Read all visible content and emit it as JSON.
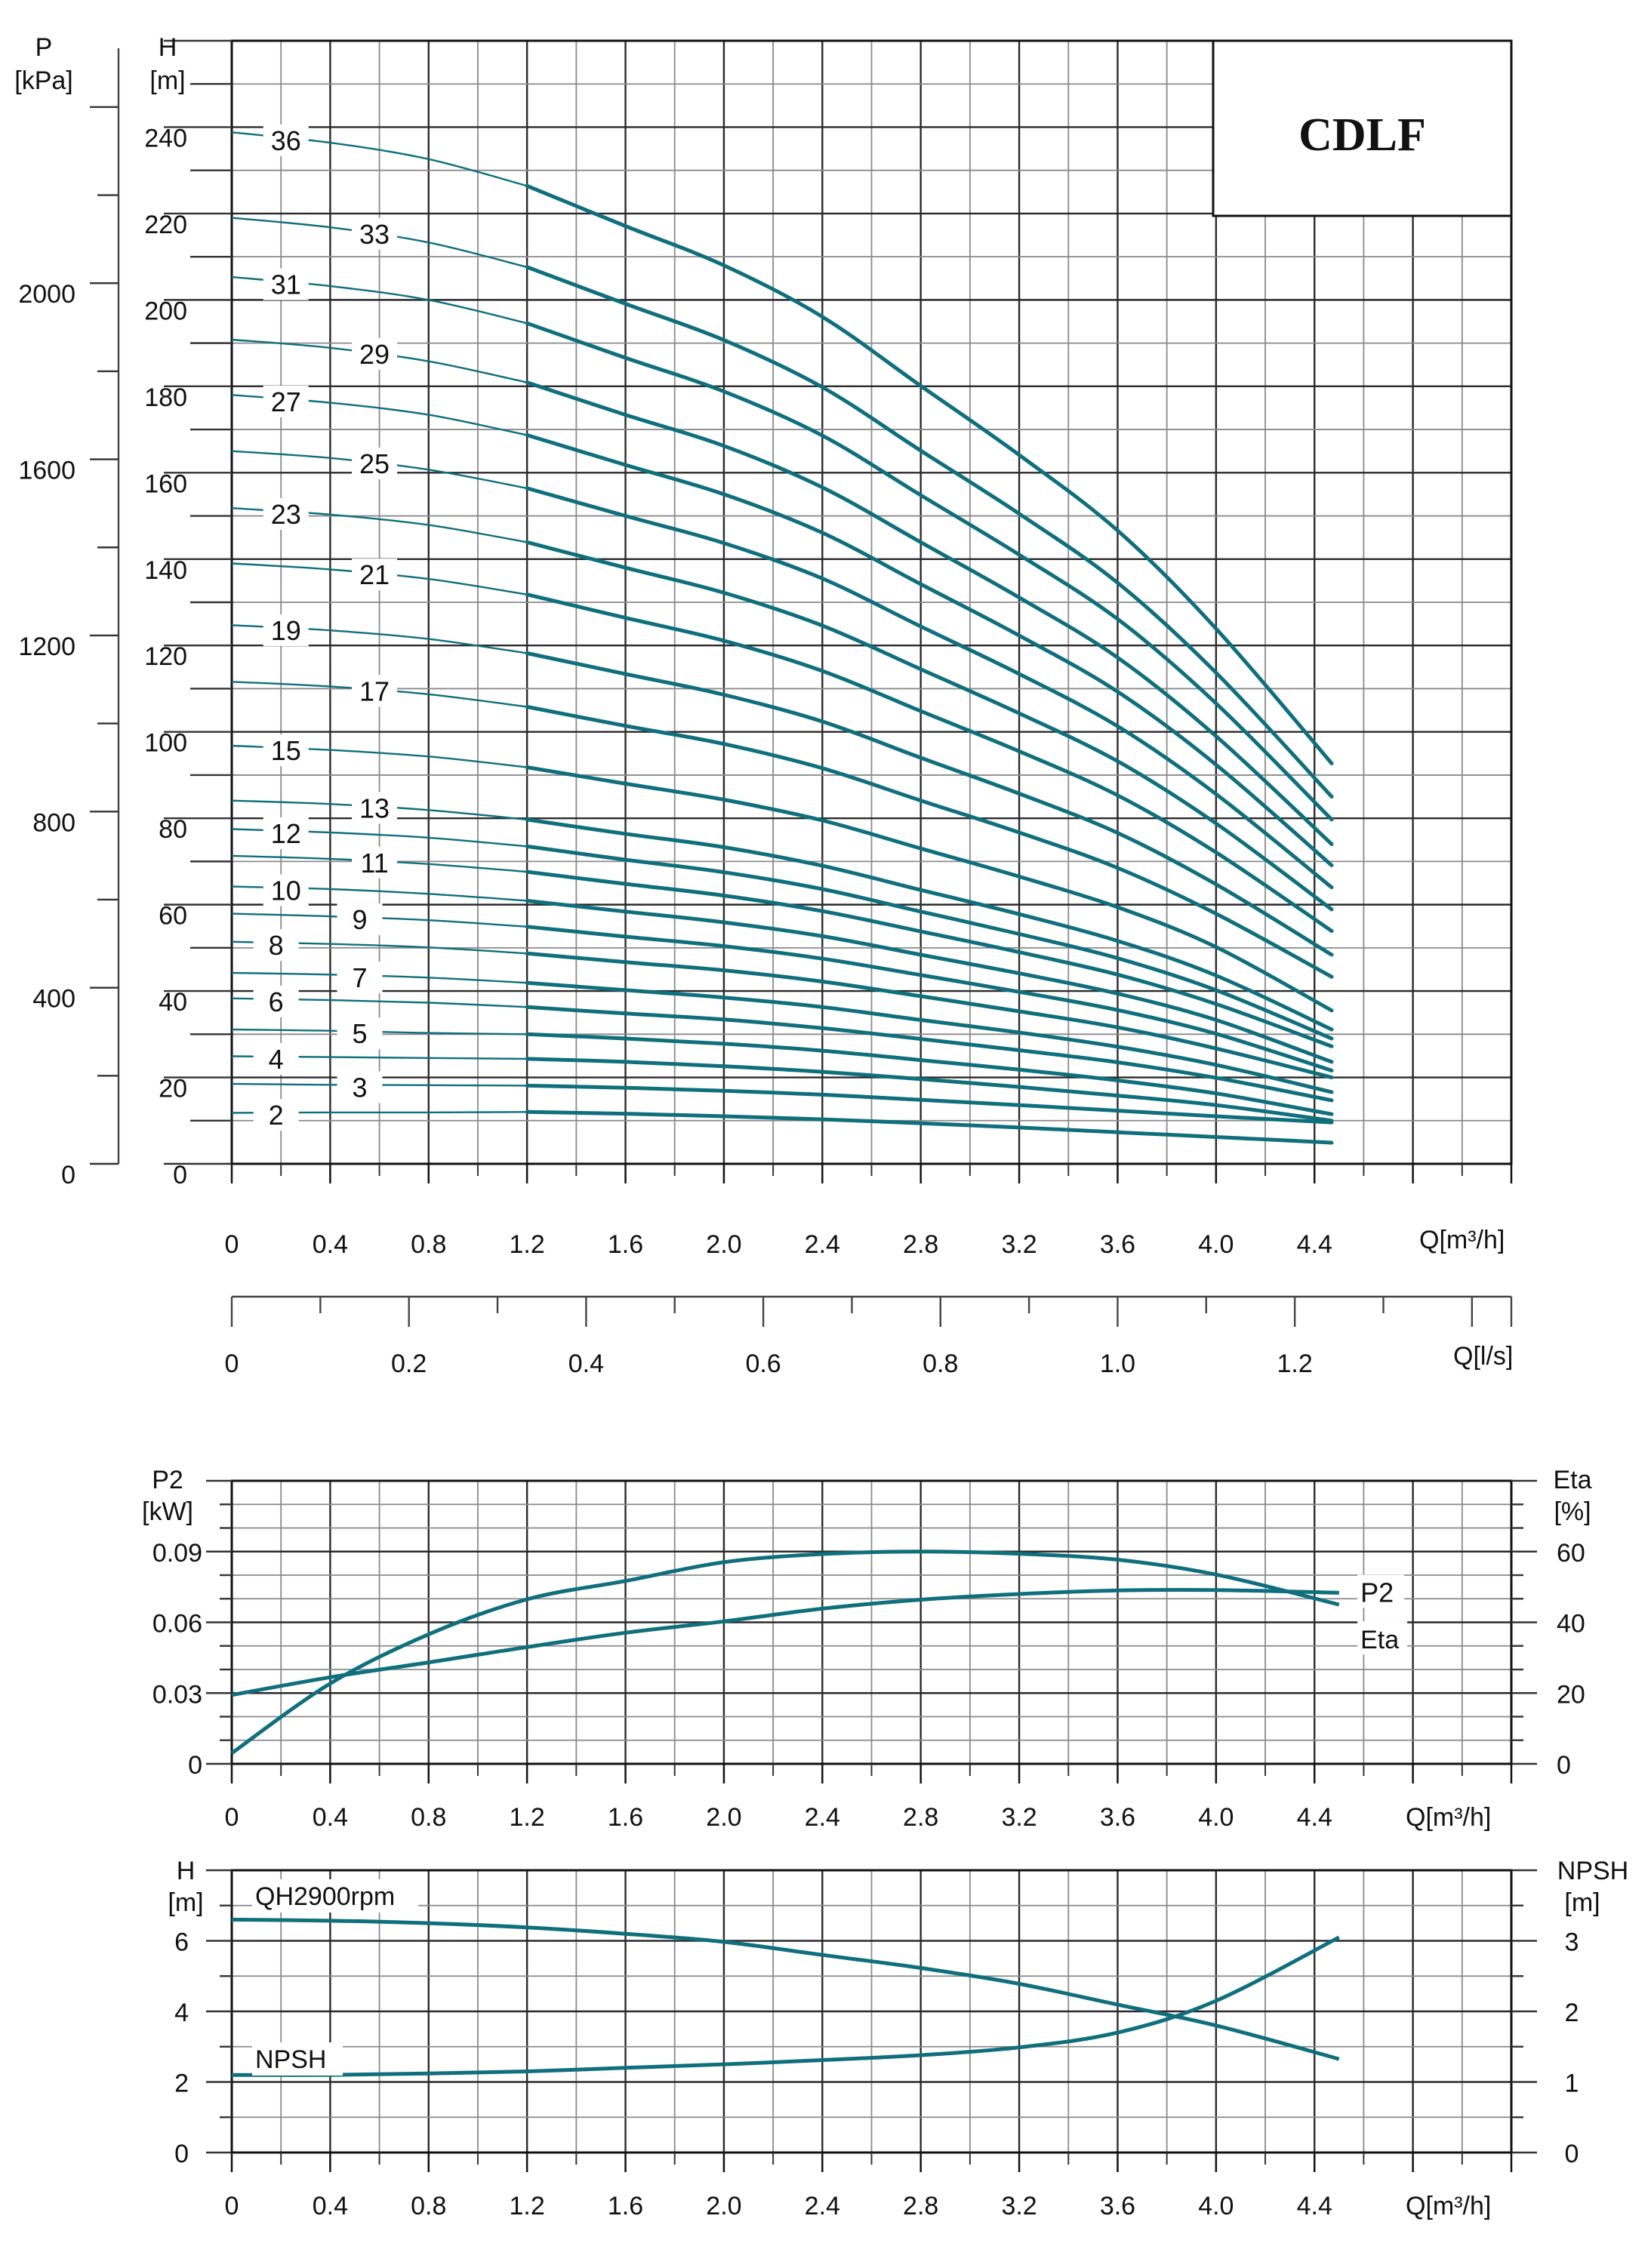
{
  "colors": {
    "curve": "#0f6f7d",
    "grid_major": "#2a2a2a",
    "grid_minor": "#8a8a8a",
    "text": "#111111"
  },
  "chart_data": [
    {
      "id": "qh-multistage",
      "type": "line",
      "title": "CDLF",
      "xlabel": "Q[m³/h]",
      "xlabel_secondary": "Q[l/s]",
      "ylabel": "H",
      "ylabel_unit": "[m]",
      "ylabel_secondary": "P",
      "ylabel_secondary_unit": "[kPa]",
      "xlim": [
        0,
        5.2
      ],
      "ylim": [
        0,
        260
      ],
      "grid": true,
      "x_ticks": [
        "0",
        "0.4",
        "0.8",
        "1.2",
        "1.6",
        "2.0",
        "2.4",
        "2.8",
        "3.2",
        "3.6",
        "4.0",
        "4.4"
      ],
      "x_tick_values": [
        0,
        0.4,
        0.8,
        1.2,
        1.6,
        2.0,
        2.4,
        2.8,
        3.2,
        3.6,
        4.0,
        4.4
      ],
      "y_ticks": [
        "0",
        "20",
        "40",
        "60",
        "80",
        "100",
        "120",
        "140",
        "160",
        "180",
        "200",
        "220",
        "240"
      ],
      "y_tick_values": [
        0,
        20,
        40,
        60,
        80,
        100,
        120,
        140,
        160,
        180,
        200,
        220,
        240
      ],
      "p_ticks": [
        "0",
        "400",
        "800",
        "1200",
        "1600",
        "2000"
      ],
      "p_tick_values": [
        0,
        400,
        800,
        1200,
        1600,
        2000
      ],
      "ls_ticks": [
        "0",
        "0.2",
        "0.4",
        "0.6",
        "0.8",
        "1.0",
        "1.2"
      ],
      "ls_tick_values": [
        0,
        0.2,
        0.4,
        0.6,
        0.8,
        1.0,
        1.2
      ],
      "x": [
        0,
        0.4,
        0.8,
        1.2,
        1.6,
        2.0,
        2.4,
        2.8,
        3.2,
        3.6,
        4.0,
        4.47
      ],
      "series": [
        {
          "name": "36",
          "values": [
            238.8,
            236.4,
            232.6,
            226.4,
            217.1,
            208.0,
            196.1,
            180.1,
            164.1,
            146.6,
            123.9,
            92.7
          ]
        },
        {
          "name": "33",
          "values": [
            219.0,
            216.8,
            213.3,
            207.6,
            199.1,
            190.7,
            179.8,
            165.1,
            150.5,
            134.5,
            113.7,
            85.0
          ]
        },
        {
          "name": "31",
          "values": [
            205.3,
            203.2,
            200.0,
            194.6,
            186.6,
            178.8,
            168.6,
            154.8,
            141.0,
            126.1,
            106.6,
            79.7
          ]
        },
        {
          "name": "29",
          "values": [
            190.8,
            188.9,
            185.8,
            180.9,
            173.4,
            166.2,
            156.6,
            143.9,
            131.1,
            117.2,
            99.0,
            74.0
          ]
        },
        {
          "name": "27",
          "values": [
            178.0,
            176.2,
            173.4,
            168.7,
            161.8,
            155.0,
            146.1,
            134.2,
            122.3,
            109.3,
            92.4,
            69.1
          ]
        },
        {
          "name": "25",
          "values": [
            165.0,
            163.4,
            160.7,
            156.4,
            150.0,
            143.7,
            135.5,
            124.4,
            113.4,
            101.3,
            85.6,
            64.0
          ]
        },
        {
          "name": "23",
          "values": [
            151.8,
            150.3,
            147.9,
            143.9,
            138.0,
            132.2,
            124.6,
            114.5,
            104.3,
            93.2,
            78.8,
            58.9
          ]
        },
        {
          "name": "21",
          "values": [
            139.0,
            137.6,
            135.4,
            131.8,
            126.4,
            121.1,
            114.1,
            104.8,
            95.5,
            85.3,
            72.1,
            53.9
          ]
        },
        {
          "name": "19",
          "values": [
            124.7,
            123.5,
            121.5,
            118.2,
            113.4,
            108.6,
            102.4,
            94.0,
            85.7,
            76.6,
            64.7,
            48.4
          ]
        },
        {
          "name": "17",
          "values": [
            111.6,
            110.5,
            108.7,
            105.8,
            101.4,
            97.2,
            91.6,
            84.1,
            76.7,
            68.5,
            57.9,
            43.3
          ]
        },
        {
          "name": "15",
          "values": [
            96.8,
            95.8,
            94.3,
            91.8,
            88.0,
            84.3,
            79.5,
            73.0,
            66.5,
            59.4,
            50.2,
            35.5
          ]
        },
        {
          "name": "13",
          "values": [
            84.1,
            83.3,
            81.9,
            79.7,
            76.4,
            73.3,
            69.0,
            63.4,
            57.8,
            51.6,
            43.6,
            31.1
          ]
        },
        {
          "name": "12",
          "values": [
            77.5,
            76.7,
            75.5,
            73.5,
            70.4,
            67.5,
            63.6,
            58.4,
            53.2,
            47.6,
            40.2,
            29.0
          ]
        },
        {
          "name": "11",
          "values": [
            71.3,
            70.6,
            69.4,
            67.6,
            64.8,
            62.1,
            58.5,
            53.8,
            49.0,
            43.8,
            37.0,
            27.2
          ]
        },
        {
          "name": "10",
          "values": [
            64.2,
            63.6,
            62.5,
            60.9,
            58.4,
            55.9,
            52.7,
            48.4,
            44.1,
            39.4,
            33.3,
            23.6
          ]
        },
        {
          "name": "9",
          "values": [
            57.9,
            57.3,
            56.4,
            54.9,
            52.6,
            50.4,
            47.5,
            43.7,
            39.8,
            35.6,
            30.1,
            21.6
          ]
        },
        {
          "name": "8",
          "values": [
            51.4,
            50.9,
            50.1,
            48.7,
            46.7,
            44.8,
            42.2,
            38.8,
            35.3,
            31.6,
            26.7,
            20.0
          ]
        },
        {
          "name": "7",
          "values": [
            44.2,
            43.8,
            43.1,
            41.9,
            40.2,
            38.5,
            36.3,
            33.3,
            30.4,
            27.1,
            22.9,
            16.6
          ]
        },
        {
          "name": "6",
          "values": [
            38.3,
            37.9,
            37.3,
            36.3,
            34.8,
            33.4,
            31.4,
            28.9,
            26.3,
            23.5,
            19.9,
            14.7
          ]
        },
        {
          "name": "5",
          "values": [
            31.1,
            30.8,
            30.3,
            30.0,
            29.0,
            27.8,
            26.2,
            24.0,
            21.8,
            19.3,
            16.3,
            11.5
          ]
        },
        {
          "name": "4",
          "values": [
            24.9,
            24.7,
            24.5,
            24.3,
            23.6,
            22.6,
            21.3,
            19.6,
            17.8,
            15.8,
            13.6,
            10.0
          ]
        },
        {
          "name": "3",
          "values": [
            18.5,
            18.3,
            18.2,
            18.1,
            17.6,
            16.9,
            16.0,
            14.8,
            13.6,
            12.3,
            11.0,
            9.6
          ]
        },
        {
          "name": "2",
          "values": [
            11.8,
            11.9,
            11.9,
            12.0,
            11.6,
            11.0,
            10.3,
            9.4,
            8.4,
            7.3,
            6.2,
            4.9
          ]
        }
      ]
    },
    {
      "id": "power-efficiency",
      "type": "line",
      "xlabel": "Q[m³/h]",
      "ylabel": "P2",
      "ylabel_unit": "[kW]",
      "ylabel_right": "Eta",
      "ylabel_right_unit": "[%]",
      "xlim": [
        0,
        5.2
      ],
      "ylim": [
        0,
        0.12
      ],
      "ylim_right": [
        0,
        80
      ],
      "grid": true,
      "x_ticks": [
        "0",
        "0.4",
        "0.8",
        "1.2",
        "1.6",
        "2.0",
        "2.4",
        "2.8",
        "3.2",
        "3.6",
        "4.0",
        "4.4"
      ],
      "y_ticks": [
        "0",
        "0.03",
        "0.06",
        "0.09"
      ],
      "y_tick_values": [
        0,
        0.03,
        0.06,
        0.09
      ],
      "y_right_ticks": [
        "0",
        "20",
        "40",
        "60"
      ],
      "y_right_tick_values": [
        0,
        20,
        40,
        60
      ],
      "x": [
        0,
        0.4,
        0.8,
        1.2,
        1.6,
        2.0,
        2.4,
        2.8,
        3.2,
        3.6,
        4.0,
        4.5
      ],
      "series": [
        {
          "name": "P2",
          "unit": "kW",
          "label": "P2",
          "values": [
            0.0292,
            0.0367,
            0.043,
            0.0495,
            0.0556,
            0.0604,
            0.0658,
            0.0696,
            0.072,
            0.0735,
            0.0737,
            0.0725
          ]
        },
        {
          "name": "Eta",
          "unit": "%",
          "label": "Eta",
          "values": [
            3.0,
            22.7,
            36.6,
            46.5,
            51.7,
            57.0,
            59.3,
            60.0,
            59.4,
            57.7,
            53.5,
            45.0
          ]
        }
      ]
    },
    {
      "id": "qh-npsh-single",
      "type": "line",
      "xlabel": "Q[m³/h]",
      "ylabel": "H",
      "ylabel_unit": "[m]",
      "ylabel_right": "NPSH",
      "ylabel_right_unit": "[m]",
      "xlim": [
        0,
        5.2
      ],
      "ylim": [
        0,
        8
      ],
      "ylim_right": [
        0,
        4
      ],
      "grid": true,
      "x_ticks": [
        "0",
        "0.4",
        "0.8",
        "1.2",
        "1.6",
        "2.0",
        "2.4",
        "2.8",
        "3.2",
        "3.6",
        "4.0",
        "4.4"
      ],
      "y_ticks": [
        "0",
        "2",
        "4",
        "6"
      ],
      "y_tick_values": [
        0,
        2,
        4,
        6
      ],
      "y_right_ticks": [
        "0",
        "1",
        "2",
        "3"
      ],
      "y_right_tick_values": [
        0,
        1,
        2,
        3
      ],
      "x": [
        0,
        0.4,
        0.8,
        1.2,
        1.6,
        2.0,
        2.4,
        2.8,
        3.2,
        3.6,
        4.0,
        4.5
      ],
      "series": [
        {
          "name": "QH2900rpm",
          "label": "QH2900rpm",
          "axis": "left",
          "values": [
            6.6,
            6.57,
            6.5,
            6.38,
            6.2,
            5.97,
            5.6,
            5.23,
            4.78,
            4.19,
            3.6,
            2.65
          ]
        },
        {
          "name": "NPSH",
          "label": "NPSH",
          "axis": "right",
          "values": [
            1.1,
            1.1,
            1.12,
            1.15,
            1.2,
            1.25,
            1.31,
            1.38,
            1.49,
            1.7,
            2.15,
            3.05
          ]
        }
      ]
    }
  ]
}
